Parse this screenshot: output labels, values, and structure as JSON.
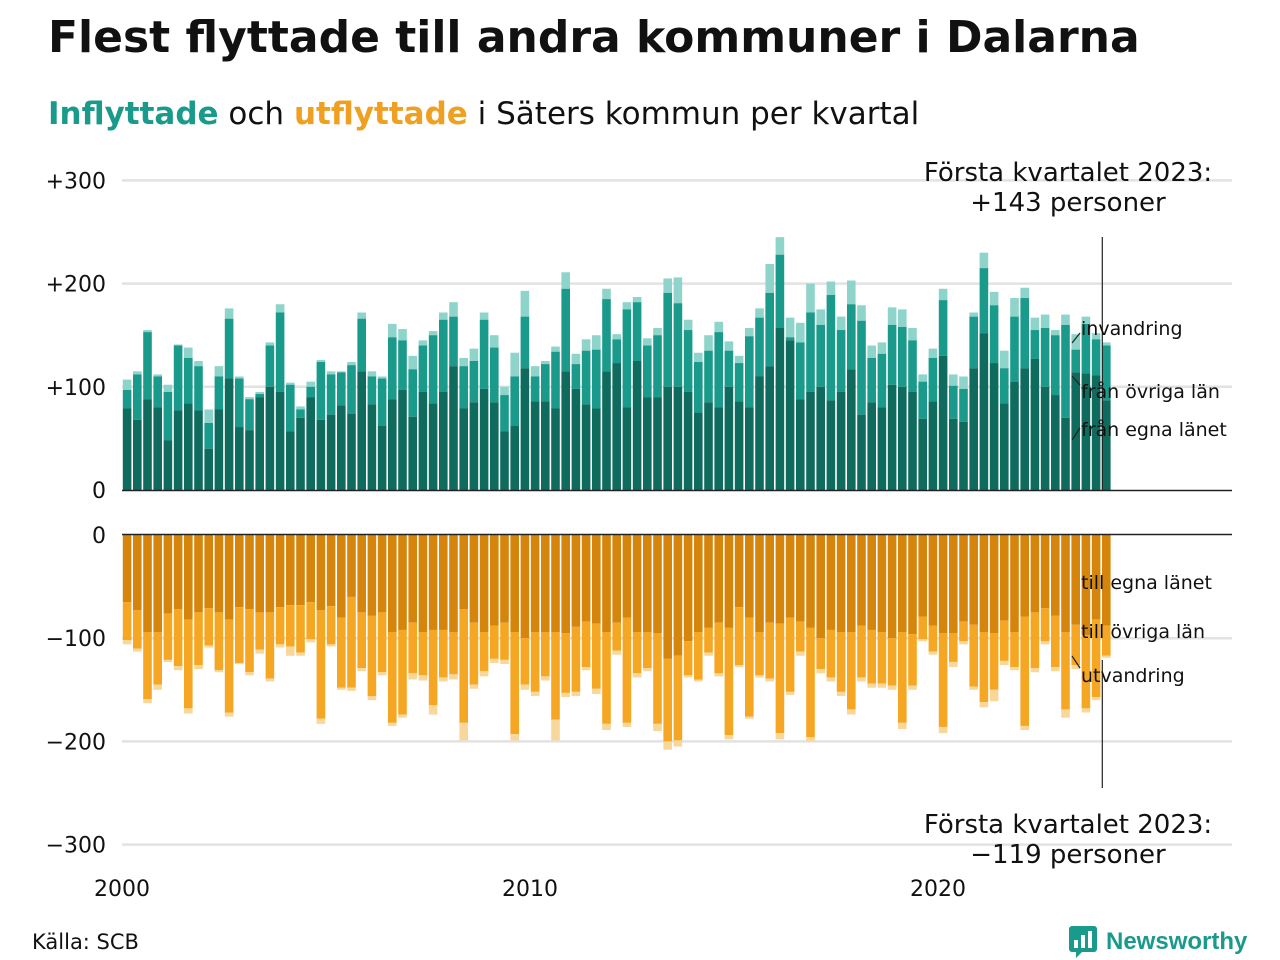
{
  "title": "Flest flyttade till andra kommuner i Dalarna",
  "subtitle": {
    "part1": "Inflyttade",
    "part2": " och ",
    "part3": "utflyttade",
    "part4": " i Säters kommun per kvartal"
  },
  "source": "Källa: SCB",
  "brand": "Newsworthy",
  "colors": {
    "in_egna": "#0e6b5e",
    "in_ovriga": "#1a9a8a",
    "in_invandring": "#8fd4ca",
    "out_egna": "#d6850c",
    "out_ovriga": "#f5a623",
    "out_utvandring": "#f8d79a"
  },
  "chart_data": {
    "type": "bar",
    "stacked": true,
    "x_start": "2000 Q1",
    "x_end": "2023 Q1",
    "x_ticks": [
      "2000",
      "2010",
      "2020"
    ],
    "y_ticks_in": [
      "+300",
      "+200",
      "+100",
      "0"
    ],
    "y_ticks_out": [
      "0",
      "−100",
      "−200",
      "−300"
    ],
    "ylim_in": [
      0,
      300
    ],
    "ylim_out": [
      -300,
      0
    ],
    "annotations": {
      "top_line1": "Första kvartalet 2023:",
      "top_line2": "+143 personer",
      "bottom_line1": "Första kvartalet 2023:",
      "bottom_line2": "−119 personer"
    },
    "series_labels": {
      "in_invandring": "invandring",
      "in_ovriga": "från övriga län",
      "in_egna": "från egna länet",
      "out_egna": "till egna länet",
      "out_ovriga": "till övriga län",
      "out_utvandring": "utvandring"
    },
    "inflyttade_total": [
      107,
      115,
      155,
      112,
      102,
      141,
      138,
      125,
      78,
      120,
      176,
      110,
      90,
      95,
      143,
      180,
      104,
      81,
      105,
      126,
      115,
      115,
      124,
      172,
      115,
      110,
      161,
      156,
      130,
      145,
      154,
      172,
      182,
      128,
      137,
      172,
      150,
      100,
      133,
      193,
      120,
      125,
      139,
      211,
      132,
      146,
      150,
      195,
      151,
      182,
      187,
      147,
      157,
      205,
      206,
      165,
      133,
      150,
      163,
      144,
      130,
      157,
      176,
      219,
      245,
      167,
      162,
      200,
      175,
      202,
      168,
      203,
      179,
      140,
      143,
      177,
      175,
      157,
      112,
      137,
      195,
      112,
      110,
      172,
      230,
      192,
      135,
      186,
      196,
      167,
      170,
      155,
      170,
      151,
      168,
      152,
      143
    ],
    "in_egna": [
      79,
      68,
      88,
      80,
      48,
      77,
      84,
      77,
      40,
      78,
      108,
      61,
      58,
      90,
      100,
      95,
      57,
      70,
      90,
      68,
      73,
      82,
      74,
      115,
      83,
      62,
      88,
      97,
      71,
      95,
      84,
      95,
      120,
      79,
      85,
      98,
      85,
      57,
      62,
      118,
      86,
      86,
      79,
      115,
      98,
      83,
      79,
      115,
      123,
      80,
      125,
      90,
      90,
      100,
      100,
      95,
      75,
      85,
      80,
      100,
      86,
      80,
      110,
      120,
      157,
      145,
      88,
      95,
      100,
      87,
      95,
      117,
      73,
      85,
      80,
      102,
      100,
      95,
      69,
      86,
      130,
      69,
      66,
      118,
      152,
      123,
      84,
      105,
      118,
      127,
      100,
      92,
      70,
      114,
      113,
      111,
      87
    ],
    "in_ovriga": [
      97,
      112,
      153,
      110,
      95,
      140,
      128,
      120,
      65,
      110,
      166,
      108,
      88,
      93,
      140,
      172,
      102,
      78,
      100,
      124,
      112,
      114,
      121,
      166,
      110,
      108,
      148,
      145,
      117,
      140,
      150,
      165,
      168,
      120,
      125,
      165,
      138,
      92,
      110,
      168,
      110,
      122,
      134,
      195,
      122,
      135,
      136,
      185,
      146,
      175,
      182,
      140,
      150,
      191,
      181,
      155,
      124,
      135,
      153,
      135,
      123,
      149,
      167,
      191,
      228,
      148,
      143,
      172,
      160,
      189,
      155,
      180,
      164,
      128,
      132,
      160,
      158,
      145,
      105,
      128,
      184,
      101,
      98,
      168,
      215,
      179,
      118,
      168,
      186,
      155,
      157,
      150,
      160,
      136,
      161,
      146,
      140
    ],
    "out_egna": [
      -65,
      -73,
      -94,
      -94,
      -76,
      -72,
      -82,
      -75,
      -71,
      -75,
      -82,
      -70,
      -72,
      -75,
      -75,
      -70,
      -68,
      -68,
      -65,
      -73,
      -69,
      -80,
      -60,
      -75,
      -78,
      -75,
      -94,
      -92,
      -85,
      -94,
      -92,
      -92,
      -94,
      -72,
      -85,
      -94,
      -88,
      -85,
      -94,
      -100,
      -94,
      -94,
      -94,
      -95,
      -89,
      -84,
      -86,
      -94,
      -85,
      -80,
      -94,
      -94,
      -95,
      -120,
      -117,
      -103,
      -94,
      -90,
      -85,
      -90,
      -70,
      -80,
      -94,
      -85,
      -86,
      -80,
      -84,
      -90,
      -100,
      -92,
      -94,
      -94,
      -88,
      -92,
      -94,
      -100,
      -94,
      -96,
      -79,
      -88,
      -95,
      -95,
      -84,
      -87,
      -94,
      -95,
      -83,
      -94,
      -79,
      -75,
      -71,
      -78,
      -94,
      -87,
      -97,
      -82,
      -88
    ],
    "out_ovriga": [
      -102,
      -110,
      -159,
      -145,
      -121,
      -127,
      -168,
      -126,
      -107,
      -131,
      -172,
      -124,
      -133,
      -111,
      -139,
      -106,
      -108,
      -114,
      -101,
      -178,
      -106,
      -148,
      -148,
      -129,
      -156,
      -133,
      -182,
      -174,
      -134,
      -136,
      -165,
      -138,
      -135,
      -182,
      -145,
      -132,
      -120,
      -121,
      -193,
      -145,
      -152,
      -137,
      -179,
      -153,
      -152,
      -128,
      -149,
      -183,
      -112,
      -182,
      -134,
      -129,
      -183,
      -200,
      -199,
      -136,
      -140,
      -114,
      -134,
      -194,
      -126,
      -176,
      -136,
      -139,
      -192,
      -152,
      -113,
      -196,
      -130,
      -138,
      -152,
      -169,
      -138,
      -144,
      -144,
      -146,
      -182,
      -146,
      -101,
      -113,
      -186,
      -123,
      -103,
      -147,
      -162,
      -150,
      -122,
      -128,
      -185,
      -129,
      -103,
      -128,
      -169,
      -126,
      -168,
      -157,
      -117
    ],
    "out_utvandring": [
      -106,
      -113,
      -163,
      -150,
      -123,
      -131,
      -173,
      -130,
      -109,
      -133,
      -176,
      -125,
      -136,
      -115,
      -142,
      -109,
      -117,
      -117,
      -104,
      -183,
      -108,
      -150,
      -151,
      -132,
      -160,
      -136,
      -185,
      -177,
      -140,
      -141,
      -174,
      -142,
      -140,
      -199,
      -149,
      -137,
      -124,
      -125,
      -199,
      -150,
      -156,
      -141,
      -199,
      -157,
      -156,
      -131,
      -154,
      -189,
      -116,
      -186,
      -138,
      -132,
      -190,
      -208,
      -205,
      -138,
      -142,
      -117,
      -137,
      -198,
      -128,
      -178,
      -138,
      -142,
      -198,
      -155,
      -117,
      -200,
      -134,
      -142,
      -156,
      -174,
      -142,
      -148,
      -148,
      -150,
      -188,
      -150,
      -103,
      -116,
      -192,
      -128,
      -106,
      -150,
      -167,
      -161,
      -126,
      -131,
      -189,
      -133,
      -106,
      -132,
      -177,
      -130,
      -172,
      -160,
      -119
    ]
  }
}
